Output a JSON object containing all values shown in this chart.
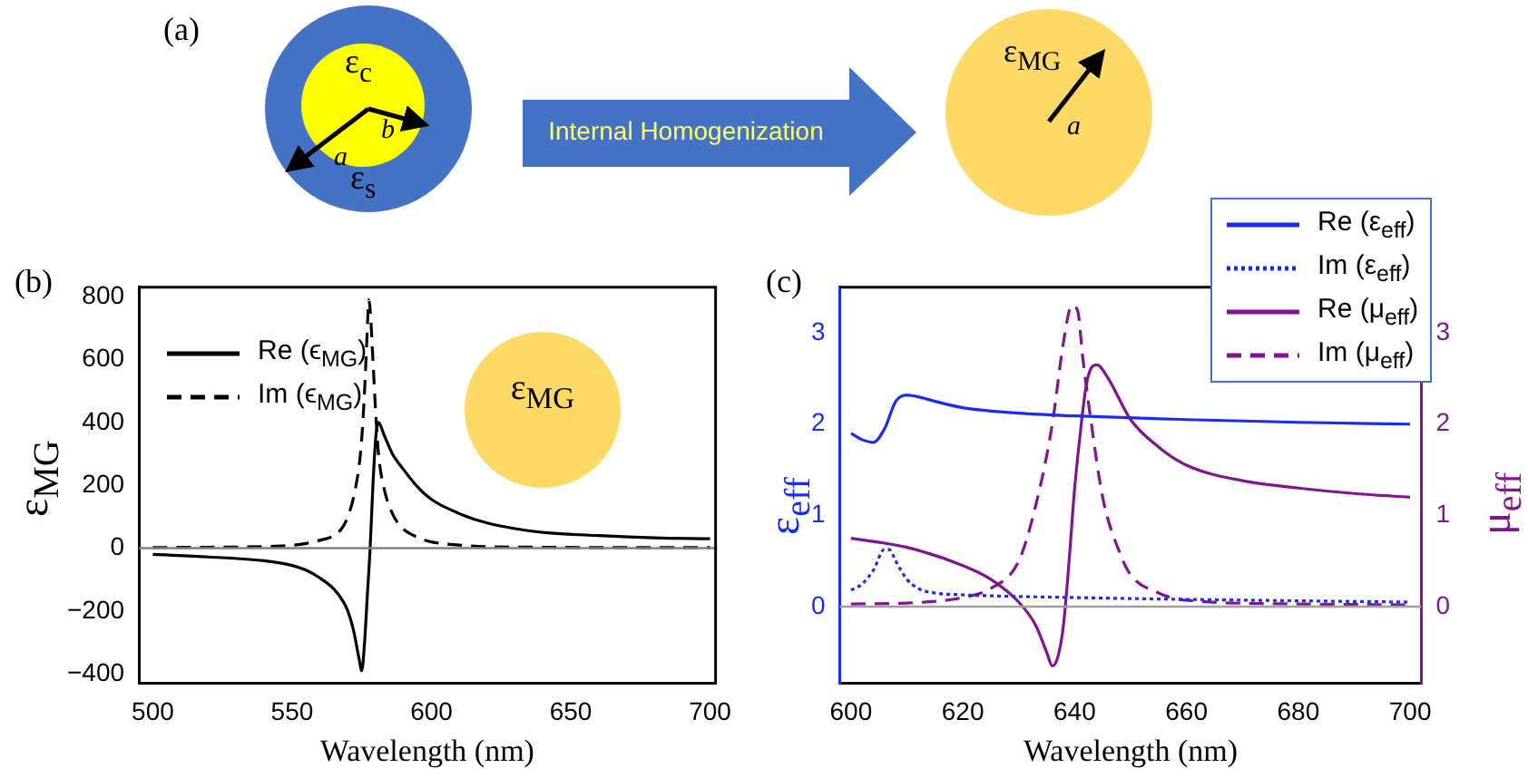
{
  "chart_data": [
    {
      "type": "other",
      "title": "(a)",
      "annotations": [
        "ε$_{c}$",
        "ε$_{s}$",
        "a",
        "b",
        "Internal Homogenization",
        "ε$_{MG}$",
        "a"
      ]
    },
    {
      "type": "line",
      "title": "(b)",
      "xlabel": "Wavelength (nm)",
      "ylabel": "ε$_{MG}$",
      "xlim": [
        495,
        702
      ],
      "xticks": [
        500,
        550,
        600,
        650,
        700
      ],
      "ylim": [
        -430,
        830
      ],
      "yticks": [
        {
          "value": -400,
          "label": "−400"
        },
        {
          "value": -200,
          "label": "−200"
        },
        0,
        200,
        400,
        600,
        800
      ],
      "grid": false,
      "legend": "top left",
      "marker": "none",
      "annotations": [
        "ε$_{MG}$"
      ],
      "ref_lines": [
        {
          "axis": "y",
          "value": 0,
          "color": "#808080"
        }
      ],
      "series": [
        {
          "name": "Re (ϵ$_{MG}$)",
          "color": "#000000",
          "line_style": "solid",
          "x": [
            500,
            520,
            540,
            550,
            555,
            560,
            565,
            568,
            570,
            572,
            574,
            575,
            576,
            577,
            578,
            579,
            580,
            581,
            583,
            586,
            590,
            595,
            600,
            610,
            620,
            630,
            640,
            660,
            680,
            700
          ],
          "values": [
            -20,
            -28,
            -40,
            -55,
            -70,
            -95,
            -130,
            -165,
            -200,
            -260,
            -350,
            -390,
            -300,
            -150,
            0,
            200,
            350,
            400,
            360,
            300,
            250,
            195,
            155,
            110,
            80,
            62,
            50,
            40,
            33,
            30
          ]
        },
        {
          "name": "Im (ϵ$_{MG}$)",
          "color": "#000000",
          "line_style": "dashed",
          "x": [
            500,
            520,
            540,
            550,
            555,
            560,
            565,
            568,
            570,
            572,
            574,
            575,
            576,
            577,
            577.5,
            578,
            579,
            580,
            581,
            583,
            586,
            590,
            595,
            600,
            610,
            620,
            640,
            660,
            700
          ],
          "values": [
            2,
            3,
            5,
            9,
            15,
            25,
            40,
            65,
            100,
            160,
            260,
            350,
            500,
            700,
            790,
            760,
            600,
            430,
            300,
            190,
            110,
            60,
            35,
            20,
            10,
            5,
            3,
            2,
            2
          ]
        }
      ]
    },
    {
      "type": "line",
      "title": "(c)",
      "xlabel": "Wavelength (nm)",
      "ylabel": "ε$_{eff}$",
      "y2label": "μ$_{eff}$",
      "xlim": [
        598,
        702
      ],
      "xticks": [
        600,
        620,
        640,
        660,
        680,
        700
      ],
      "ylim": [
        -0.84,
        3.5
      ],
      "yticks": [
        0,
        1,
        2,
        3
      ],
      "y2lim": [
        -0.84,
        3.5
      ],
      "y2ticks": [
        0,
        1,
        2,
        3
      ],
      "grid": false,
      "legend": "top right",
      "marker": "none",
      "ref_lines": [
        {
          "axis": "y",
          "value": 0,
          "color": "#a0a0a0"
        }
      ],
      "series": [
        {
          "name": "Re (ε$_{eff}$)",
          "color": "#1a2cf0",
          "line_style": "solid",
          "axis": "y",
          "x": [
            600,
            602,
            604,
            606,
            608,
            610,
            612,
            615,
            620,
            630,
            640,
            660,
            680,
            700
          ],
          "values": [
            1.9,
            1.83,
            1.8,
            1.95,
            2.25,
            2.32,
            2.3,
            2.25,
            2.18,
            2.12,
            2.09,
            2.05,
            2.02,
            2.0
          ]
        },
        {
          "name": "Im (ε$_{eff}$)",
          "color": "#1a2cf0",
          "line_style": "dotted",
          "axis": "y",
          "x": [
            600,
            602,
            604,
            606,
            607,
            608,
            610,
            612,
            615,
            620,
            640,
            660,
            700
          ],
          "values": [
            0.18,
            0.25,
            0.4,
            0.63,
            0.62,
            0.5,
            0.3,
            0.2,
            0.15,
            0.13,
            0.1,
            0.08,
            0.05
          ]
        },
        {
          "name": "Re (μ$_{eff}$)",
          "color": "#80158f",
          "line_style": "solid",
          "axis": "y2",
          "x": [
            600,
            610,
            620,
            625,
            630,
            633,
            635,
            636,
            637,
            638,
            639,
            640,
            641,
            642,
            643,
            644,
            646,
            650,
            655,
            660,
            670,
            680,
            690,
            700
          ],
          "values": [
            0.75,
            0.65,
            0.45,
            0.3,
            0.05,
            -0.2,
            -0.5,
            -0.65,
            -0.55,
            -0.2,
            0.5,
            1.3,
            1.9,
            2.4,
            2.62,
            2.65,
            2.5,
            2.05,
            1.75,
            1.55,
            1.38,
            1.3,
            1.24,
            1.2
          ]
        },
        {
          "name": "Im (μ$_{eff}$)",
          "color": "#80158f",
          "line_style": "dashed",
          "axis": "y2",
          "x": [
            600,
            610,
            620,
            625,
            630,
            633,
            636,
            638,
            639.5,
            640.5,
            641.5,
            643,
            645,
            648,
            650,
            655,
            660,
            680,
            700
          ],
          "values": [
            0.03,
            0.04,
            0.1,
            0.2,
            0.5,
            1.1,
            2.0,
            2.9,
            3.3,
            3.25,
            2.7,
            2.0,
            1.2,
            0.6,
            0.35,
            0.15,
            0.07,
            0.03,
            0.02
          ]
        }
      ]
    }
  ]
}
